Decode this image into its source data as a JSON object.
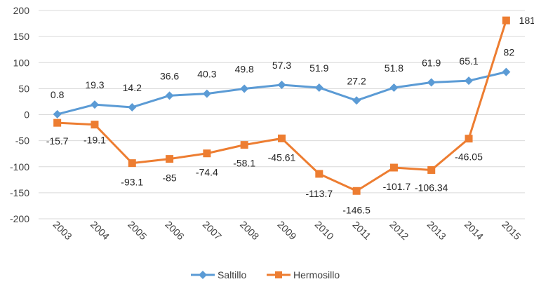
{
  "chart_data": {
    "type": "line",
    "title": "",
    "xlabel": "",
    "ylabel": "",
    "categories": [
      "2003",
      "2004",
      "2005",
      "2006",
      "2007",
      "2008",
      "2009",
      "2010",
      "2011",
      "2012",
      "2013",
      "2014",
      "2015"
    ],
    "ylim": [
      -200,
      200
    ],
    "yticks": [
      200,
      150,
      100,
      50,
      0,
      -50,
      -100,
      -150,
      -200
    ],
    "grid": true,
    "legend": "bottom",
    "series": [
      {
        "name": "Saltillo",
        "color": "#5B9BD5",
        "marker": "diamond",
        "values": [
          0.8,
          19.3,
          14.2,
          36.6,
          40.3,
          49.8,
          57.3,
          51.9,
          27.2,
          51.8,
          61.9,
          65.1,
          82
        ],
        "labels": [
          "0.8",
          "19.3",
          "14.2",
          "36.6",
          "40.3",
          "49.8",
          "57.3",
          "51.9",
          "27.2",
          "51.8",
          "61.9",
          "65.1",
          "82"
        ]
      },
      {
        "name": "Hermosillo",
        "color": "#ED7D31",
        "marker": "square",
        "values": [
          -15.7,
          -19.1,
          -93.1,
          -85,
          -74.4,
          -58.1,
          -45.61,
          -113.7,
          -146.5,
          -101.7,
          -106.34,
          -46.05,
          181
        ],
        "labels": [
          "-15.7",
          "-19.1",
          "-93.1",
          "-85",
          "-74.4",
          "-58.1",
          "-45.61",
          "-113.7",
          "-146.5",
          "-101.7",
          "-106.34",
          "-46.05",
          "181"
        ]
      }
    ]
  }
}
